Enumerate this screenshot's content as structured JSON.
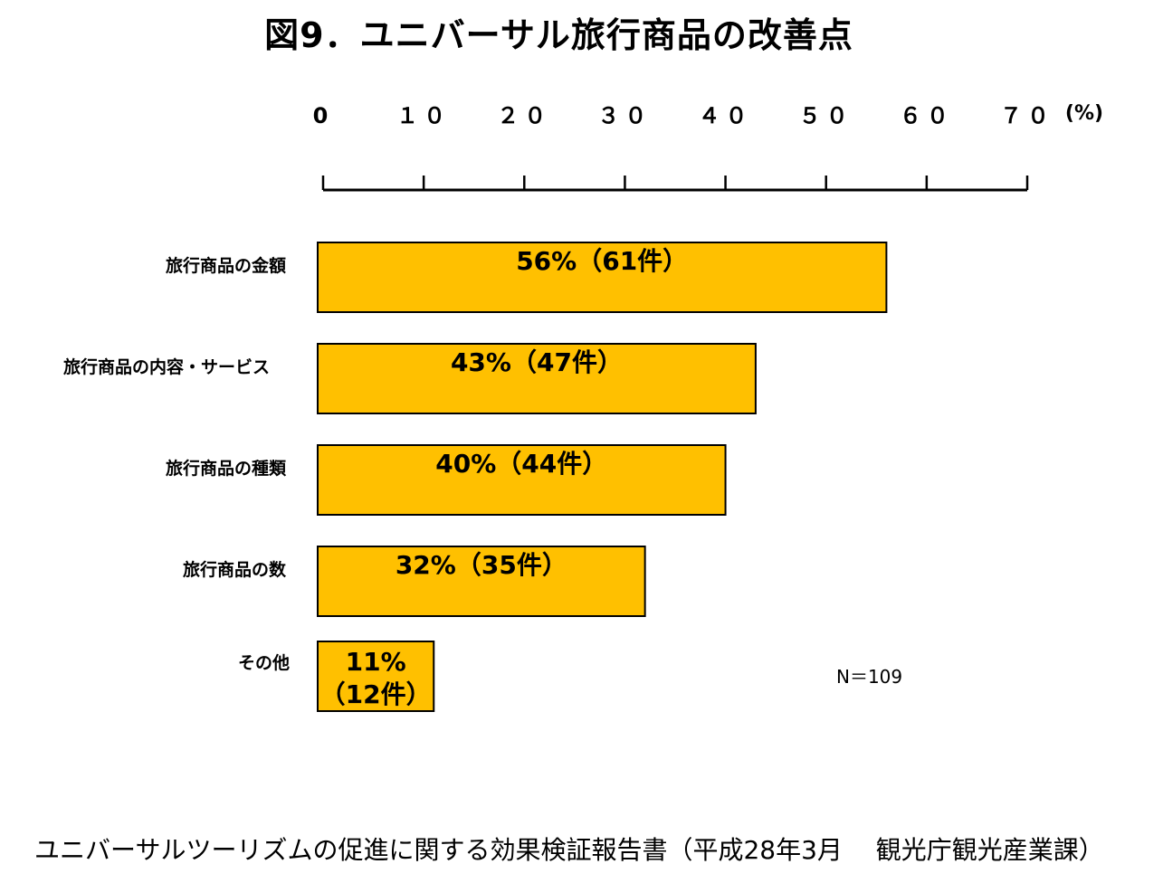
{
  "title": "図9．ユニバーサル旅行商品の改善点",
  "note": "N＝109",
  "source": "ユニバーサルツーリズムの促進に関する効果検証報告書（平成28年3月　 観光庁観光産業課）",
  "colors": {
    "bar_fill": "#FFC000",
    "bar_stroke": "#000000",
    "axis": "#000000"
  },
  "chart_data": {
    "type": "bar",
    "orientation": "horizontal",
    "title": "図9．ユニバーサル旅行商品の改善点",
    "categories": [
      "旅行商品の金額",
      "旅行商品の内容・サービス",
      "旅行商品の種類",
      "旅行商品の数",
      "その他"
    ],
    "values": [
      56,
      43,
      40,
      32,
      11
    ],
    "counts": [
      61,
      47,
      44,
      35,
      12
    ],
    "bar_labels": [
      "56%（61件）",
      "43%（47件）",
      "40%（44件）",
      "32%（35件）",
      [
        "11%",
        "（12件）"
      ]
    ],
    "xlim": [
      0,
      70
    ],
    "x_ticks": [
      0,
      10,
      20,
      30,
      40,
      50,
      60,
      70
    ],
    "x_tick_labels": [
      "0",
      "１０",
      "２０",
      "３０",
      "４０",
      "５０",
      "６０",
      "７０"
    ],
    "x_unit": "(%)",
    "axis_position": "top",
    "grid": false,
    "legend": "none"
  }
}
